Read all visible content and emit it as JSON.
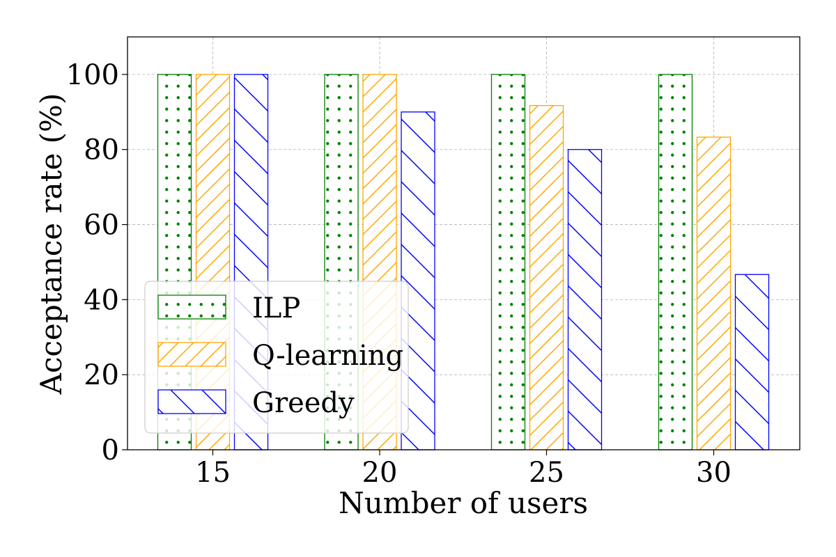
{
  "chart_data": {
    "type": "bar",
    "xlabel": "Number of users",
    "ylabel": "Acceptance rate (%)",
    "categories": [
      "15",
      "20",
      "25",
      "30"
    ],
    "ylim": [
      0,
      110
    ],
    "yticks": [
      0,
      20,
      40,
      60,
      80,
      100
    ],
    "grid": true,
    "legend_position": "lower-left",
    "series": [
      {
        "name": "ILP",
        "values": [
          100,
          100,
          100,
          100
        ],
        "color": "#008000",
        "hatch": "dots"
      },
      {
        "name": "Q-learning",
        "values": [
          100,
          100,
          91.7,
          83.3
        ],
        "color": "#FFA500",
        "hatch": "forward-diagonal"
      },
      {
        "name": "Greedy",
        "values": [
          100,
          90,
          80,
          46.7
        ],
        "color": "#0000FF",
        "hatch": "back-diagonal"
      }
    ]
  }
}
